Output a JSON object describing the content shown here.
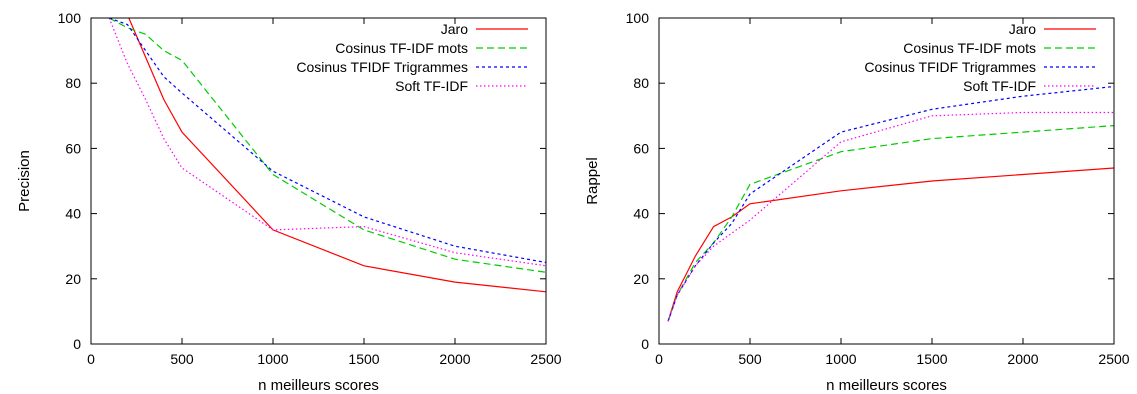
{
  "chart_data": [
    {
      "type": "line",
      "xlabel": "n meilleurs scores",
      "ylabel": "Precision",
      "xlim": [
        0,
        2500
      ],
      "ylim": [
        0,
        100
      ],
      "xticks": [
        0,
        500,
        1000,
        1500,
        2000,
        2500
      ],
      "yticks": [
        0,
        20,
        40,
        60,
        80,
        100
      ],
      "grid": false,
      "legend_position": "top-right",
      "series": [
        {
          "name": "Jaro",
          "color": "#ff0000",
          "dash": "solid",
          "x": [
            100,
            200,
            300,
            400,
            500,
            1000,
            1500,
            2000,
            2500
          ],
          "y": [
            100,
            101,
            88,
            75,
            65,
            35,
            24,
            19,
            16
          ]
        },
        {
          "name": "Cosinus TF-IDF mots",
          "color": "#00cc00",
          "dash": "dashed",
          "x": [
            100,
            200,
            300,
            400,
            500,
            1000,
            1500,
            2000,
            2500
          ],
          "y": [
            100,
            97,
            95,
            90,
            87,
            52,
            35,
            26,
            22
          ]
        },
        {
          "name": "Cosinus TFIDF Trigrammes",
          "color": "#0000ff",
          "dash": "dotted",
          "x": [
            100,
            200,
            300,
            400,
            500,
            1000,
            1500,
            2000,
            2500
          ],
          "y": [
            100,
            98,
            90,
            82,
            77,
            53,
            39,
            30,
            25
          ]
        },
        {
          "name": "Soft TF-IDF",
          "color": "#ff00ff",
          "dash": "fine-dotted",
          "x": [
            100,
            200,
            300,
            400,
            500,
            1000,
            1500,
            2000,
            2500
          ],
          "y": [
            100,
            86,
            75,
            63,
            54,
            35,
            36,
            28,
            24
          ]
        }
      ]
    },
    {
      "type": "line",
      "xlabel": "n meilleurs scores",
      "ylabel": "Rappel",
      "xlim": [
        0,
        2500
      ],
      "ylim": [
        0,
        100
      ],
      "xticks": [
        0,
        500,
        1000,
        1500,
        2000,
        2500
      ],
      "yticks": [
        0,
        20,
        40,
        60,
        80,
        100
      ],
      "grid": false,
      "legend_position": "top-right",
      "series": [
        {
          "name": "Jaro",
          "color": "#ff0000",
          "dash": "solid",
          "x": [
            50,
            100,
            200,
            300,
            400,
            500,
            1000,
            1500,
            2000,
            2500
          ],
          "y": [
            7,
            16,
            27,
            36,
            39,
            43,
            47,
            50,
            52,
            54
          ]
        },
        {
          "name": "Cosinus TF-IDF mots",
          "color": "#00cc00",
          "dash": "dashed",
          "x": [
            50,
            100,
            200,
            300,
            400,
            500,
            1000,
            1500,
            2000,
            2500
          ],
          "y": [
            7,
            15,
            25,
            31,
            39,
            49,
            59,
            63,
            65,
            67
          ]
        },
        {
          "name": "Cosinus TFIDF Trigrammes",
          "color": "#0000ff",
          "dash": "dotted",
          "x": [
            50,
            100,
            200,
            300,
            400,
            500,
            1000,
            1500,
            2000,
            2500
          ],
          "y": [
            7,
            15,
            24,
            31,
            37,
            46,
            65,
            72,
            76,
            79
          ]
        },
        {
          "name": "Soft TF-IDF",
          "color": "#ff00ff",
          "dash": "fine-dotted",
          "x": [
            50,
            100,
            200,
            300,
            400,
            500,
            1000,
            1500,
            2000,
            2500
          ],
          "y": [
            7,
            15,
            24,
            30,
            34,
            38,
            62,
            70,
            71,
            71
          ]
        }
      ]
    }
  ]
}
